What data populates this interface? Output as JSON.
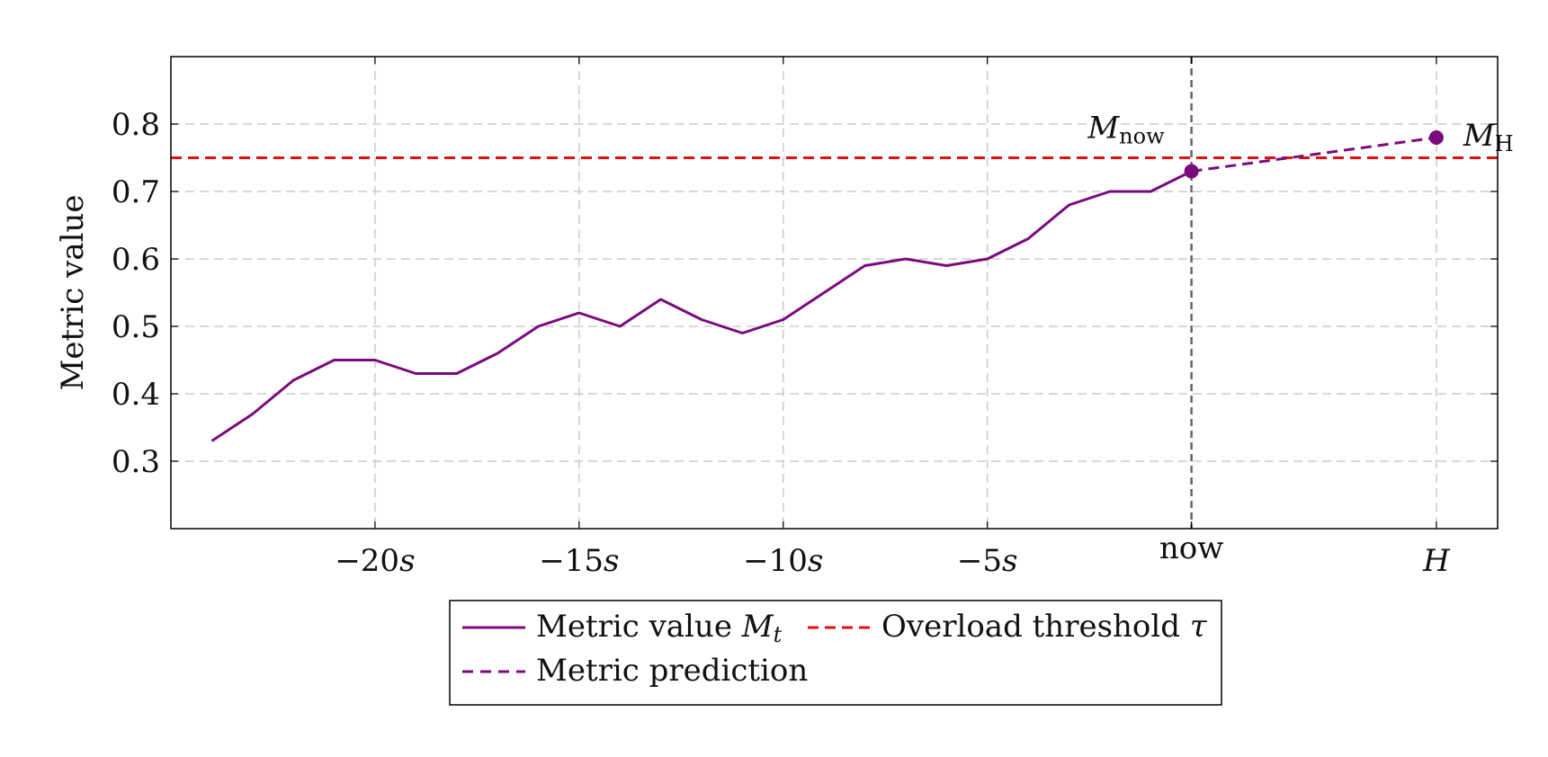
{
  "chart_data": {
    "type": "line",
    "ylabel": "Metric value",
    "xlabel": "",
    "ylim": [
      0.2,
      0.9
    ],
    "yticks": [
      0.3,
      0.4,
      0.5,
      0.6,
      0.7,
      0.8
    ],
    "ytick_labels": [
      "0.3",
      "0.4",
      "0.5",
      "0.6",
      "0.7",
      "0.8"
    ],
    "xticks": [
      {
        "x": -20,
        "main": "−20",
        "unit": "s"
      },
      {
        "x": -15,
        "main": "−15",
        "unit": "s"
      },
      {
        "x": -10,
        "main": "−10",
        "unit": "s"
      },
      {
        "x": -5,
        "main": "−5",
        "unit": "s"
      },
      {
        "x": 0,
        "main": "now",
        "unit": ""
      },
      {
        "x": 6,
        "main": "H",
        "unit": ""
      }
    ],
    "grid": true,
    "series": [
      {
        "name": "Metric value",
        "name_math": "M",
        "name_sub": "t",
        "style": "solid",
        "color": "#7b0a7e",
        "x": [
          -24,
          -23,
          -22,
          -21,
          -20,
          -19,
          -18,
          -17,
          -16,
          -15,
          -14,
          -13,
          -12,
          -11,
          -10,
          -9,
          -8,
          -7,
          -6,
          -5,
          -4,
          -3,
          -2,
          -1,
          0
        ],
        "y": [
          0.33,
          0.37,
          0.42,
          0.45,
          0.45,
          0.43,
          0.43,
          0.46,
          0.5,
          0.52,
          0.5,
          0.54,
          0.51,
          0.49,
          0.51,
          0.55,
          0.59,
          0.6,
          0.59,
          0.6,
          0.63,
          0.68,
          0.7,
          0.7,
          0.73
        ]
      },
      {
        "name": "Overload threshold",
        "name_math": "τ",
        "style": "dashed",
        "color": "#e01010",
        "y_constant": 0.75
      },
      {
        "name": "Metric prediction",
        "style": "dashed",
        "color": "#7b0a7e",
        "x": [
          0,
          6
        ],
        "y": [
          0.73,
          0.78
        ]
      }
    ],
    "points": [
      {
        "x": 0,
        "y": 0.73,
        "label": "M",
        "label_sub": "now"
      },
      {
        "x": 6,
        "y": 0.78,
        "label": "M",
        "label_sub": "H"
      }
    ],
    "now_marker_x": 0,
    "legend_position": "bottom-center"
  },
  "colors": {
    "series_purple": "#7b0a7e",
    "threshold_red": "#e01010",
    "grid": "#cccccc",
    "now_line": "#666666"
  }
}
